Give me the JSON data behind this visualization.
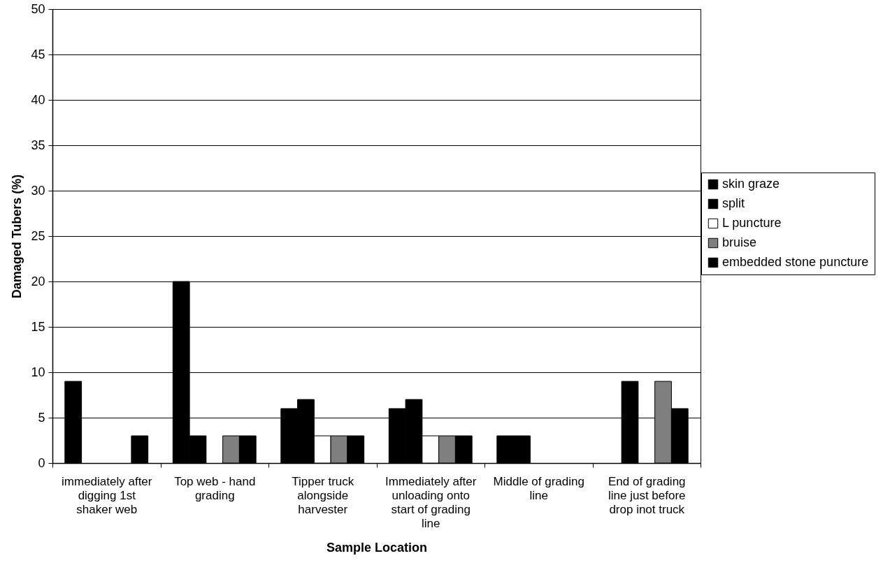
{
  "chart_data": {
    "type": "bar",
    "xlabel": "Sample Location",
    "ylabel": "Damaged Tubers (%)",
    "categories": [
      "immediately after digging 1st shaker web",
      "Top web - hand grading",
      "Tipper truck alongside harvester",
      "Immediately after unloading onto start of grading line",
      "Middle of grading line",
      "End of grading line just before drop inot truck"
    ],
    "series": [
      {
        "name": "skin graze",
        "color": "#000000",
        "values": [
          9,
          20,
          6,
          6,
          3,
          0
        ]
      },
      {
        "name": "split",
        "color": "#000000",
        "values": [
          0,
          3,
          7,
          7,
          3,
          9
        ]
      },
      {
        "name": "L puncture",
        "color": "#ffffff",
        "values": [
          0,
          0,
          3,
          3,
          0,
          0
        ]
      },
      {
        "name": "bruise",
        "color": "#7f7f7f",
        "values": [
          0,
          3,
          3,
          3,
          0,
          9
        ]
      },
      {
        "name": "embedded stone puncture",
        "color": "#000000",
        "values": [
          3,
          3,
          3,
          3,
          0,
          6
        ]
      }
    ],
    "ylim": [
      0,
      50
    ],
    "yticks": [
      0,
      5,
      10,
      15,
      20,
      25,
      30,
      35,
      40,
      45,
      50
    ],
    "grid": "y",
    "legend": "right"
  }
}
